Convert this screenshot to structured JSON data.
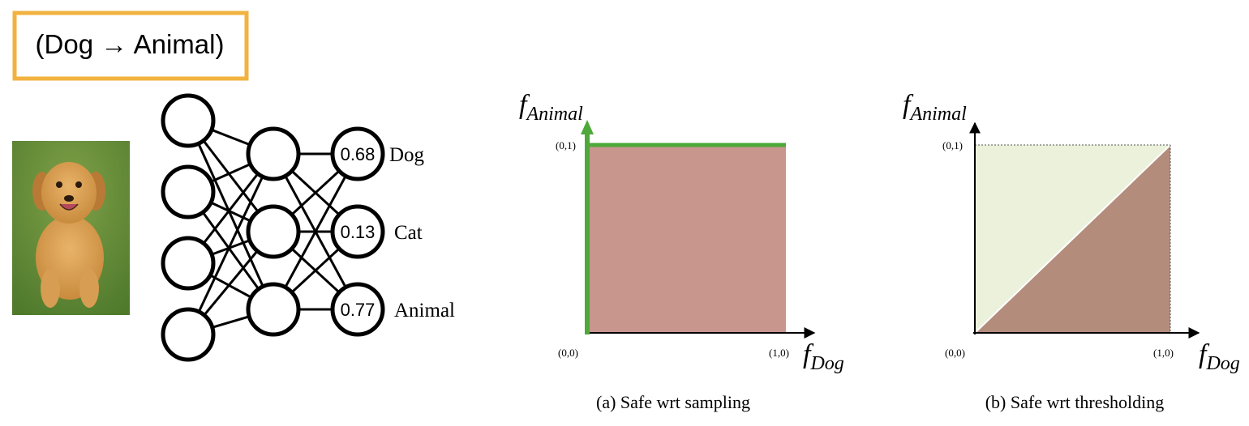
{
  "rule_box": {
    "text": "(Dog → Animal)",
    "border_color": "#F2B23F"
  },
  "image": {
    "icon": "puppy-photo"
  },
  "network": {
    "outputs": [
      {
        "value": "0.68",
        "label": "Dog"
      },
      {
        "value": "0.13",
        "label": "Cat"
      },
      {
        "value": "0.77",
        "label": "Animal"
      }
    ]
  },
  "plots": [
    {
      "y_axis_symbol": "f",
      "y_axis_subscript": "Animal",
      "x_axis_symbol": "f",
      "x_axis_subscript": "Dog",
      "origin_label": "(0,0)",
      "x_corner_label": "(1,0)",
      "y_corner_label": "(0,1)",
      "caption": "(a) Safe wrt sampling",
      "fill_color": "#C8968D",
      "highlight_color": "#4EA83A"
    },
    {
      "y_axis_symbol": "f",
      "y_axis_subscript": "Animal",
      "x_axis_symbol": "f",
      "x_axis_subscript": "Dog",
      "origin_label": "(0,0)",
      "x_corner_label": "(1,0)",
      "y_corner_label": "(0,1)",
      "caption": "(b) Safe wrt thresholding",
      "safe_color": "#EBF1DB",
      "unsafe_color": "#B48C7C"
    }
  ]
}
